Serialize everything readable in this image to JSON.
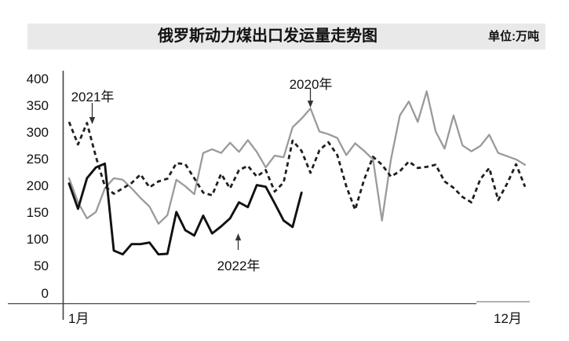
{
  "header": {
    "title": "俄罗斯动力煤出口发运量走势图",
    "unit_label": "单位:万吨"
  },
  "chart_data": {
    "type": "line",
    "title": "俄罗斯动力煤出口发运量走势图",
    "value_unit": "万吨",
    "x_axis": {
      "start_label": "1月",
      "end_label": "12月"
    },
    "y_axis": {
      "ticks": [
        400,
        350,
        300,
        250,
        200,
        150,
        100,
        50,
        0
      ],
      "range": [
        0,
        400
      ]
    },
    "legend_position": "inline-annotations",
    "grid": false,
    "series": [
      {
        "name": "2020年",
        "line_style": "solid",
        "color": "#9a9a9a",
        "values": [
          215,
          170,
          140,
          152,
          196,
          215,
          212,
          196,
          178,
          162,
          130,
          146,
          212,
          200,
          185,
          262,
          269,
          262,
          281,
          264,
          286,
          264,
          235,
          257,
          254,
          310,
          326,
          345,
          302,
          297,
          290,
          258,
          280,
          266,
          250,
          136,
          250,
          332,
          358,
          320,
          377,
          302,
          270,
          332,
          276,
          265,
          275,
          296,
          262,
          256,
          250,
          240
        ]
      },
      {
        "name": "2021年",
        "line_style": "dashed",
        "color": "#1f1f1f",
        "values": [
          320,
          278,
          318,
          255,
          200,
          186,
          196,
          206,
          222,
          198,
          209,
          214,
          243,
          241,
          215,
          188,
          183,
          223,
          196,
          230,
          238,
          218,
          230,
          190,
          207,
          285,
          266,
          225,
          267,
          282,
          258,
          200,
          156,
          212,
          255,
          240,
          218,
          228,
          246,
          234,
          236,
          240,
          209,
          197,
          180,
          170,
          213,
          234,
          174,
          205,
          241,
          199
        ]
      },
      {
        "name": "2022年",
        "line_style": "solid",
        "color": "#111111",
        "values": [
          205,
          158,
          215,
          235,
          242,
          80,
          73,
          92,
          92,
          95,
          73,
          74,
          152,
          118,
          108,
          145,
          112,
          125,
          140,
          170,
          161,
          202,
          199,
          168,
          136,
          124,
          188
        ]
      }
    ],
    "annotations": [
      {
        "label": "2021年",
        "arrow": "down"
      },
      {
        "label": "2020年",
        "arrow": "down"
      },
      {
        "label": "2022年",
        "arrow": "up"
      }
    ]
  },
  "colors": {
    "header_bg": "#e9e9e9",
    "axis": "#444444",
    "text": "#111111",
    "gray_line": "#9a9a9a",
    "black_line": "#111111"
  }
}
